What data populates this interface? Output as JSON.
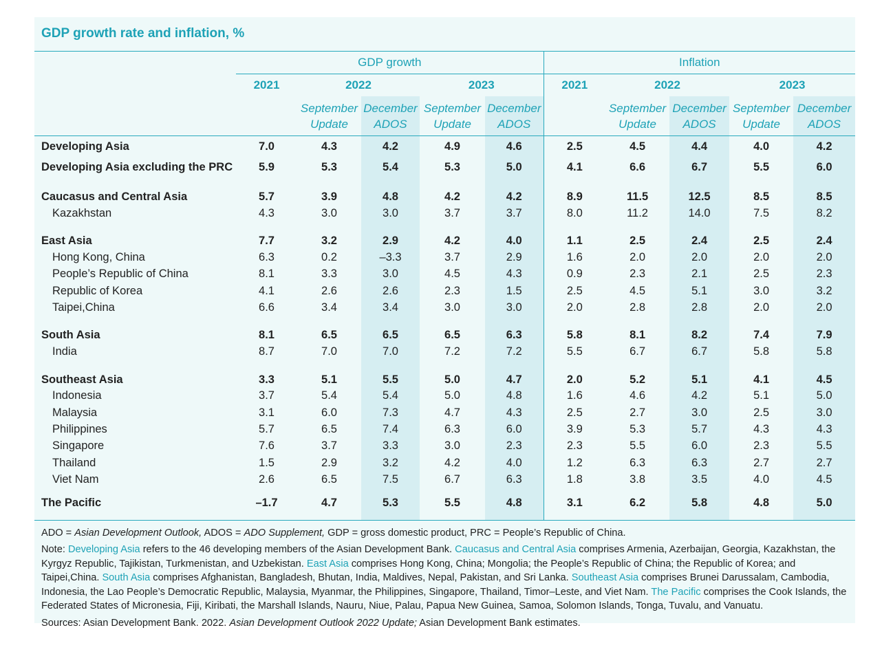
{
  "title": "GDP growth rate and inflation, %",
  "header": {
    "groups": [
      {
        "title": "GDP growth",
        "years": [
          "2021",
          "2022",
          "2023"
        ]
      },
      {
        "title": "Inflation",
        "years": [
          "2021",
          "2022",
          "2023"
        ]
      }
    ],
    "editions": [
      "September Update",
      "December ADOS"
    ]
  },
  "table": {
    "groups": [
      {
        "name": "Developing Asia",
        "values": [
          "7.0",
          "4.3",
          "4.2",
          "4.9",
          "4.6",
          "2.5",
          "4.5",
          "4.4",
          "4.0",
          "4.2"
        ],
        "countries": []
      },
      {
        "name": "Developing Asia excluding the PRC",
        "values": [
          "5.9",
          "5.3",
          "5.4",
          "5.3",
          "5.0",
          "4.1",
          "6.6",
          "6.7",
          "5.5",
          "6.0"
        ],
        "countries": []
      },
      {
        "name": "Caucasus and Central Asia",
        "values": [
          "5.7",
          "3.9",
          "4.8",
          "4.2",
          "4.2",
          "8.9",
          "11.5",
          "12.5",
          "8.5",
          "8.5"
        ],
        "countries": [
          {
            "name": "Kazakhstan",
            "values": [
              "4.3",
              "3.0",
              "3.0",
              "3.7",
              "3.7",
              "8.0",
              "11.2",
              "14.0",
              "7.5",
              "8.2"
            ]
          }
        ]
      },
      {
        "name": "East Asia",
        "values": [
          "7.7",
          "3.2",
          "2.9",
          "4.2",
          "4.0",
          "1.1",
          "2.5",
          "2.4",
          "2.5",
          "2.4"
        ],
        "countries": [
          {
            "name": "Hong Kong, China",
            "values": [
              "6.3",
              "0.2",
              "–3.3",
              "3.7",
              "2.9",
              "1.6",
              "2.0",
              "2.0",
              "2.0",
              "2.0"
            ]
          },
          {
            "name": "People’s Republic of China",
            "values": [
              "8.1",
              "3.3",
              "3.0",
              "4.5",
              "4.3",
              "0.9",
              "2.3",
              "2.1",
              "2.5",
              "2.3"
            ]
          },
          {
            "name": "Republic of Korea",
            "values": [
              "4.1",
              "2.6",
              "2.6",
              "2.3",
              "1.5",
              "2.5",
              "4.5",
              "5.1",
              "3.0",
              "3.2"
            ]
          },
          {
            "name": "Taipei,China",
            "values": [
              "6.6",
              "3.4",
              "3.4",
              "3.0",
              "3.0",
              "2.0",
              "2.8",
              "2.8",
              "2.0",
              "2.0"
            ]
          }
        ]
      },
      {
        "name": "South Asia",
        "values": [
          "8.1",
          "6.5",
          "6.5",
          "6.5",
          "6.3",
          "5.8",
          "8.1",
          "8.2",
          "7.4",
          "7.9"
        ],
        "countries": [
          {
            "name": "India",
            "values": [
              "8.7",
              "7.0",
              "7.0",
              "7.2",
              "7.2",
              "5.5",
              "6.7",
              "6.7",
              "5.8",
              "5.8"
            ]
          }
        ]
      },
      {
        "name": "Southeast Asia",
        "values": [
          "3.3",
          "5.1",
          "5.5",
          "5.0",
          "4.7",
          "2.0",
          "5.2",
          "5.1",
          "4.1",
          "4.5"
        ],
        "countries": [
          {
            "name": "Indonesia",
            "values": [
              "3.7",
              "5.4",
              "5.4",
              "5.0",
              "4.8",
              "1.6",
              "4.6",
              "4.2",
              "5.1",
              "5.0"
            ]
          },
          {
            "name": "Malaysia",
            "values": [
              "3.1",
              "6.0",
              "7.3",
              "4.7",
              "4.3",
              "2.5",
              "2.7",
              "3.0",
              "2.5",
              "3.0"
            ]
          },
          {
            "name": "Philippines",
            "values": [
              "5.7",
              "6.5",
              "7.4",
              "6.3",
              "6.0",
              "3.9",
              "5.3",
              "5.7",
              "4.3",
              "4.3"
            ]
          },
          {
            "name": "Singapore",
            "values": [
              "7.6",
              "3.7",
              "3.3",
              "3.0",
              "2.3",
              "2.3",
              "5.5",
              "6.0",
              "2.3",
              "5.5"
            ]
          },
          {
            "name": "Thailand",
            "values": [
              "1.5",
              "2.9",
              "3.2",
              "4.2",
              "4.0",
              "1.2",
              "6.3",
              "6.3",
              "2.7",
              "2.7"
            ]
          },
          {
            "name": "Viet Nam",
            "values": [
              "2.6",
              "6.5",
              "7.5",
              "6.7",
              "6.3",
              "1.8",
              "3.8",
              "3.5",
              "4.0",
              "4.5"
            ]
          }
        ]
      },
      {
        "name": "The Pacific",
        "values": [
          "–1.7",
          "4.7",
          "5.3",
          "5.5",
          "4.8",
          "3.1",
          "6.2",
          "5.8",
          "4.8",
          "5.0"
        ],
        "countries": []
      }
    ]
  },
  "notes": {
    "abbreviations": [
      "ADO =",
      "Asian Development Outlook,",
      "ADOS =",
      "ADO Supplement,",
      "GDP = gross domestic product, PRC = People’s Republic of China."
    ],
    "note": [
      "Note:",
      "Developing Asia",
      "refers to the 46 developing members of the Asian Development Bank.",
      "Caucasus and Central Asia",
      "comprises Armenia, Azerbaijan, Georgia, Kazakhstan, the Kyrgyz Republic, Tajikistan, Turkmenistan, and Uzbekistan.",
      "East Asia",
      "comprises Hong Kong, China; Mongolia; the People’s Republic of China; the Republic of Korea; and Taipei,China.",
      "South Asia",
      "comprises Afghanistan, Bangladesh, Bhutan, India, Maldives, Nepal, Pakistan, and Sri Lanka.",
      "Southeast Asia",
      "comprises Brunei Darussalam, Cambodia, Indonesia, the Lao People’s Democratic Republic, Malaysia, Myanmar, the Philippines, Singapore, Thailand, Timor–Leste, and Viet Nam.",
      "The Pacific",
      "comprises the Cook Islands, the Federated States of Micronesia, Fiji, Kiribati, the Marshall Islands, Nauru, Niue, Palau, Papua New Guinea, Samoa, Solomon Islands, Tonga, Tuvalu, and Vanuatu."
    ],
    "sources": [
      "Sources: Asian Development Bank. 2022.",
      "Asian Development Outlook 2022 Update;",
      "Asian Development Bank estimates."
    ]
  }
}
